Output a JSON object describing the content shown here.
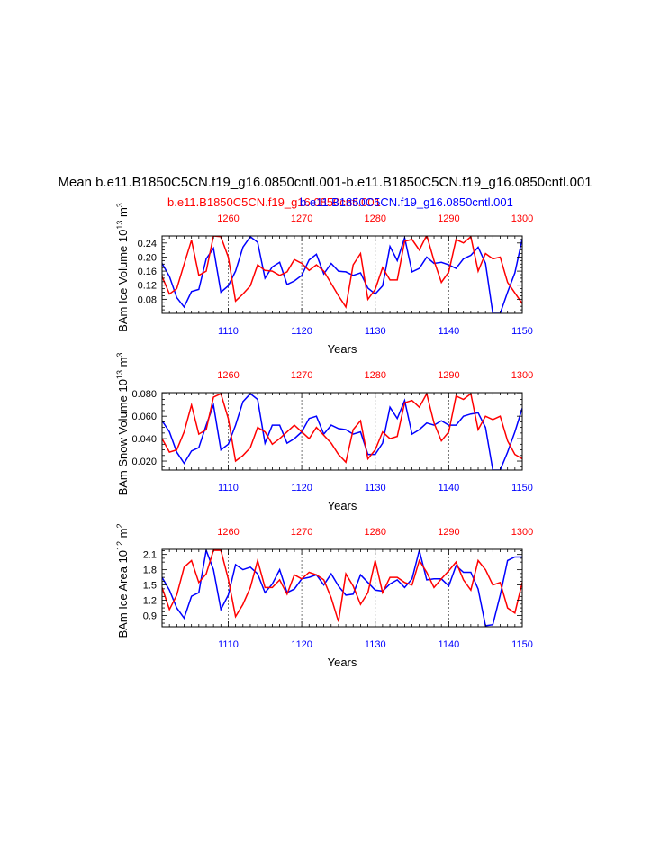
{
  "figure": {
    "main_title": "Mean b.e11.B1850C5CN.f19_g16.0850cntl.001-b.e11.B1850C5CN.f19_g16.0850cntl.001",
    "case_red": "b.e11.B1850C5CN.f19_g16.0850cntl.001",
    "case_blue": "b.e11.B1850C5CN.f19_g16.0850cntl.001",
    "colors": {
      "red": "#ff0000",
      "blue": "#0000ff",
      "axis": "#000000"
    }
  },
  "chart_data": [
    {
      "type": "line",
      "ylabel_prefix": "BAm Ice Volume 10",
      "ylabel_exp": "13",
      "ylabel_unit": " m",
      "ylabel_unit_exp": "3",
      "xlabel": "Years",
      "ylim": [
        0.04,
        0.26
      ],
      "yticks": [
        0.08,
        0.12,
        0.16,
        0.2,
        0.24
      ],
      "yticklabels": [
        "0.08",
        "0.12",
        "0.16",
        "0.20",
        "0.24"
      ],
      "xlim_bottom": [
        1101,
        1150
      ],
      "xticks_bottom": [
        1110,
        1120,
        1130,
        1140,
        1150
      ],
      "xticklabels_bottom": [
        "1110",
        "1120",
        "1130",
        "1140",
        "1150"
      ],
      "xticks_top": [
        1260,
        1270,
        1280,
        1290,
        1300
      ],
      "xticklabels_top": [
        "1260",
        "1270",
        "1280",
        "1290",
        "1300"
      ],
      "series": [
        {
          "name": "b.e11.B1850C5CN.f19_g16.0850cntl.001",
          "color": "#0000ff",
          "values": [
            0.182,
            0.145,
            0.085,
            0.058,
            0.102,
            0.108,
            0.195,
            0.225,
            0.1,
            0.118,
            0.16,
            0.228,
            0.258,
            0.242,
            0.14,
            0.172,
            0.185,
            0.122,
            0.132,
            0.148,
            0.192,
            0.208,
            0.152,
            0.182,
            0.16,
            0.158,
            0.148,
            0.155,
            0.112,
            0.095,
            0.118,
            0.23,
            0.19,
            0.255,
            0.158,
            0.168,
            0.2,
            0.182,
            0.185,
            0.178,
            0.168,
            0.195,
            0.205,
            0.228,
            0.182,
            0.04,
            0.04,
            0.1,
            0.155,
            0.252
          ]
        },
        {
          "name": "b.e11.B1850C5CN.f19_g16.0850cntl.001",
          "color": "#ff0000",
          "values": [
            0.145,
            0.095,
            0.11,
            0.18,
            0.248,
            0.148,
            0.16,
            0.26,
            0.258,
            0.2,
            0.075,
            0.095,
            0.118,
            0.178,
            0.162,
            0.16,
            0.148,
            0.158,
            0.193,
            0.182,
            0.162,
            0.178,
            0.16,
            0.125,
            0.09,
            0.058,
            0.178,
            0.21,
            0.08,
            0.108,
            0.17,
            0.135,
            0.135,
            0.245,
            0.25,
            0.22,
            0.262,
            0.19,
            0.128,
            0.158,
            0.25,
            0.24,
            0.258,
            0.16,
            0.21,
            0.195,
            0.2,
            0.128,
            0.098,
            0.068
          ]
        }
      ]
    },
    {
      "type": "line",
      "ylabel_prefix": "BAm Snow Volume 10",
      "ylabel_exp": "13",
      "ylabel_unit": " m",
      "ylabel_unit_exp": "3",
      "xlabel": "Years",
      "ylim": [
        0.012,
        0.081
      ],
      "yticks": [
        0.02,
        0.04,
        0.06,
        0.08
      ],
      "yticklabels": [
        "0.020",
        "0.040",
        "0.060",
        "0.080"
      ],
      "xlim_bottom": [
        1101,
        1150
      ],
      "xticks_bottom": [
        1110,
        1120,
        1130,
        1140,
        1150
      ],
      "xticklabels_bottom": [
        "1110",
        "1120",
        "1130",
        "1140",
        "1150"
      ],
      "xticks_top": [
        1260,
        1270,
        1280,
        1290,
        1300
      ],
      "xticklabels_top": [
        "1260",
        "1270",
        "1280",
        "1290",
        "1300"
      ],
      "series": [
        {
          "name": "b.e11.B1850C5CN.f19_g16.0850cntl.001",
          "color": "#0000ff",
          "values": [
            0.056,
            0.046,
            0.028,
            0.018,
            0.029,
            0.032,
            0.052,
            0.07,
            0.03,
            0.035,
            0.052,
            0.073,
            0.08,
            0.075,
            0.036,
            0.052,
            0.052,
            0.036,
            0.04,
            0.046,
            0.058,
            0.06,
            0.044,
            0.052,
            0.049,
            0.048,
            0.044,
            0.046,
            0.026,
            0.026,
            0.036,
            0.068,
            0.058,
            0.074,
            0.044,
            0.048,
            0.054,
            0.052,
            0.056,
            0.052,
            0.052,
            0.06,
            0.062,
            0.063,
            0.05,
            0.012,
            0.012,
            0.028,
            0.046,
            0.067
          ]
        },
        {
          "name": "b.e11.B1850C5CN.f19_g16.0850cntl.001",
          "color": "#ff0000",
          "values": [
            0.04,
            0.028,
            0.03,
            0.046,
            0.07,
            0.044,
            0.048,
            0.077,
            0.08,
            0.058,
            0.02,
            0.025,
            0.032,
            0.05,
            0.046,
            0.035,
            0.04,
            0.046,
            0.052,
            0.046,
            0.04,
            0.05,
            0.043,
            0.036,
            0.026,
            0.019,
            0.048,
            0.056,
            0.022,
            0.03,
            0.046,
            0.04,
            0.042,
            0.072,
            0.074,
            0.068,
            0.08,
            0.054,
            0.038,
            0.046,
            0.078,
            0.075,
            0.08,
            0.048,
            0.06,
            0.057,
            0.06,
            0.038,
            0.026,
            0.022
          ]
        }
      ]
    },
    {
      "type": "line",
      "ylabel_prefix": "BAm Ice Area 10",
      "ylabel_exp": "12",
      "ylabel_unit": " m",
      "ylabel_unit_exp": "2",
      "xlabel": "Years",
      "ylim": [
        0.68,
        2.2
      ],
      "yticks": [
        0.9,
        1.2,
        1.5,
        1.8,
        2.1
      ],
      "yticklabels": [
        "0.9",
        "1.2",
        "1.5",
        "1.8",
        "2.1"
      ],
      "xlim_bottom": [
        1101,
        1150
      ],
      "xticks_bottom": [
        1110,
        1120,
        1130,
        1140,
        1150
      ],
      "xticklabels_bottom": [
        "1110",
        "1120",
        "1130",
        "1140",
        "1150"
      ],
      "xticks_top": [
        1260,
        1270,
        1280,
        1290,
        1300
      ],
      "xticklabels_top": [
        "1260",
        "1270",
        "1280",
        "1290",
        "1300"
      ],
      "series": [
        {
          "name": "b.e11.B1850C5CN.f19_g16.0850cntl.001",
          "color": "#0000ff",
          "values": [
            1.65,
            1.4,
            1.05,
            0.85,
            1.28,
            1.35,
            2.18,
            1.8,
            1.02,
            1.3,
            1.9,
            1.8,
            1.85,
            1.72,
            1.35,
            1.52,
            1.8,
            1.35,
            1.42,
            1.62,
            1.65,
            1.7,
            1.5,
            1.72,
            1.48,
            1.3,
            1.32,
            1.7,
            1.55,
            1.4,
            1.38,
            1.52,
            1.6,
            1.45,
            1.62,
            2.18,
            1.6,
            1.62,
            1.62,
            1.48,
            1.88,
            1.75,
            1.75,
            1.42,
            0.7,
            0.72,
            1.3,
            1.98,
            2.05,
            2.05
          ]
        },
        {
          "name": "b.e11.B1850C5CN.f19_g16.0850cntl.001",
          "color": "#ff0000",
          "values": [
            1.45,
            1.02,
            1.3,
            1.85,
            1.98,
            1.55,
            1.72,
            2.18,
            2.18,
            1.62,
            0.88,
            1.12,
            1.45,
            1.98,
            1.45,
            1.45,
            1.6,
            1.32,
            1.7,
            1.62,
            1.75,
            1.7,
            1.6,
            1.25,
            0.78,
            1.72,
            1.48,
            1.12,
            1.35,
            1.98,
            1.35,
            1.65,
            1.65,
            1.55,
            1.5,
            1.98,
            1.75,
            1.45,
            1.62,
            1.78,
            1.95,
            1.6,
            1.4,
            1.98,
            1.8,
            1.5,
            1.55,
            1.05,
            0.95,
            1.55
          ]
        }
      ]
    }
  ]
}
